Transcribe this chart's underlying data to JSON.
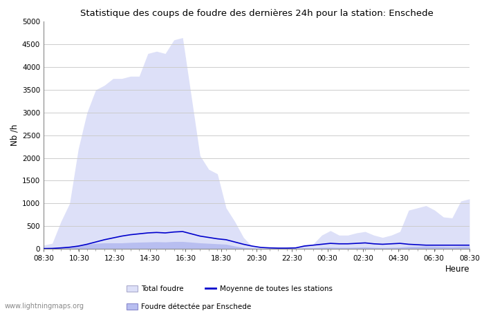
{
  "title": "Statistique des coups de foudre des dernières 24h pour la station: Enschede",
  "xlabel": "Heure",
  "ylabel": "Nb /h",
  "ylim": [
    0,
    5000
  ],
  "yticks": [
    0,
    500,
    1000,
    1500,
    2000,
    2500,
    3000,
    3500,
    4000,
    4500,
    5000
  ],
  "xtick_labels": [
    "08:30",
    "10:30",
    "12:30",
    "14:30",
    "16:30",
    "18:30",
    "20:30",
    "22:30",
    "00:30",
    "02:30",
    "04:30",
    "06:30",
    "08:30"
  ],
  "bg_color": "#ffffff",
  "plot_bg_color": "#ffffff",
  "grid_color": "#cccccc",
  "total_foudre_color": "#dde0f8",
  "detected_color": "#b8bef0",
  "moyenne_color": "#0000cc",
  "watermark": "www.lightningmaps.org",
  "total_foudre_values": [
    80,
    120,
    600,
    1000,
    2200,
    3000,
    3500,
    3600,
    3750,
    3750,
    3800,
    3800,
    4300,
    4350,
    4300,
    4600,
    4650,
    3350,
    2050,
    1750,
    1650,
    900,
    600,
    250,
    50,
    20,
    20,
    20,
    20,
    30,
    100,
    100,
    300,
    400,
    300,
    300,
    350,
    380,
    300,
    250,
    300,
    380,
    850,
    900,
    950,
    850,
    700,
    680,
    1050,
    1100
  ],
  "detected_values": [
    10,
    15,
    30,
    50,
    80,
    100,
    120,
    130,
    130,
    130,
    140,
    145,
    150,
    155,
    150,
    160,
    160,
    145,
    130,
    120,
    110,
    100,
    60,
    30,
    15,
    8,
    8,
    8,
    8,
    8,
    20,
    20,
    30,
    35,
    30,
    30,
    35,
    40,
    30,
    25,
    30,
    35,
    50,
    55,
    60,
    55,
    50,
    45,
    55,
    60
  ],
  "moyenne_values": [
    5,
    8,
    20,
    35,
    60,
    100,
    150,
    200,
    240,
    280,
    310,
    330,
    350,
    360,
    350,
    370,
    380,
    330,
    280,
    250,
    220,
    200,
    150,
    100,
    60,
    30,
    20,
    15,
    15,
    20,
    60,
    80,
    100,
    120,
    110,
    110,
    120,
    130,
    110,
    100,
    110,
    120,
    100,
    90,
    80,
    80,
    80,
    80,
    80,
    80
  ]
}
